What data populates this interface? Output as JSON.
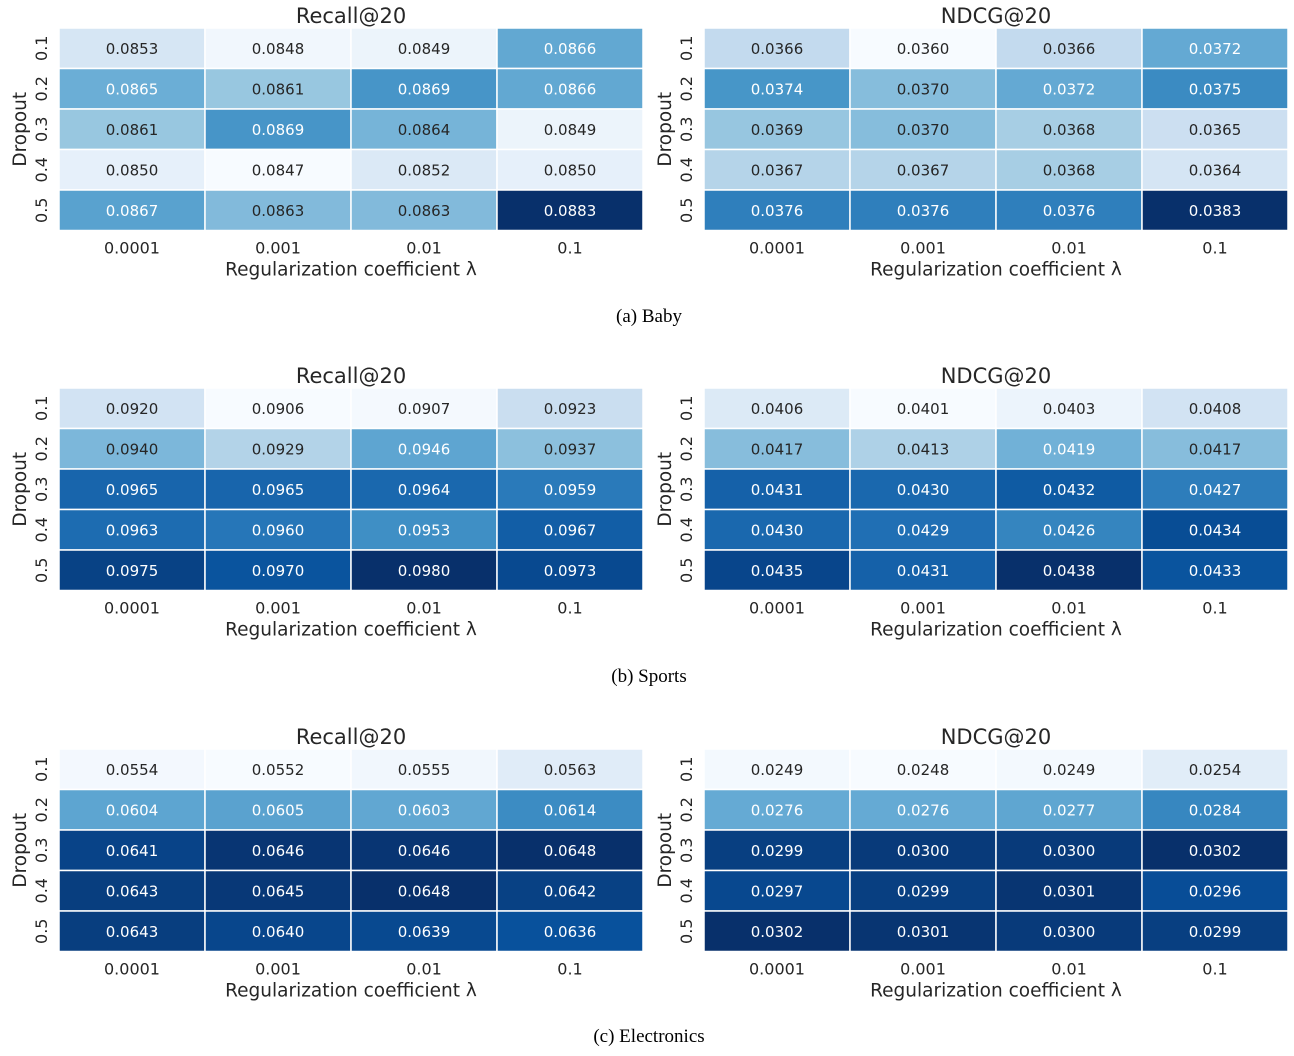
{
  "figure": {
    "panels": [
      {
        "caption": "(a)  Baby",
        "charts": [
          {
            "type": "heatmap",
            "title": "Recall@20",
            "xlabel": "Regularization coefficient λ",
            "ylabel": "Dropout",
            "x_ticks": [
              "0.0001",
              "0.001",
              "0.01",
              "0.1"
            ],
            "y_ticks": [
              "0.1",
              "0.2",
              "0.3",
              "0.4",
              "0.5"
            ],
            "values": [
              [
                "0.0853",
                "0.0848",
                "0.0849",
                "0.0866"
              ],
              [
                "0.0865",
                "0.0861",
                "0.0869",
                "0.0866"
              ],
              [
                "0.0861",
                "0.0869",
                "0.0864",
                "0.0849"
              ],
              [
                "0.0850",
                "0.0847",
                "0.0852",
                "0.0850"
              ],
              [
                "0.0867",
                "0.0863",
                "0.0863",
                "0.0883"
              ]
            ],
            "colormap": "Blues"
          },
          {
            "type": "heatmap",
            "title": "NDCG@20",
            "xlabel": "Regularization coefficient λ",
            "ylabel": "Dropout",
            "x_ticks": [
              "0.0001",
              "0.001",
              "0.01",
              "0.1"
            ],
            "y_ticks": [
              "0.1",
              "0.2",
              "0.3",
              "0.4",
              "0.5"
            ],
            "values": [
              [
                "0.0366",
                "0.0360",
                "0.0366",
                "0.0372"
              ],
              [
                "0.0374",
                "0.0370",
                "0.0372",
                "0.0375"
              ],
              [
                "0.0369",
                "0.0370",
                "0.0368",
                "0.0365"
              ],
              [
                "0.0367",
                "0.0367",
                "0.0368",
                "0.0364"
              ],
              [
                "0.0376",
                "0.0376",
                "0.0376",
                "0.0383"
              ]
            ],
            "colormap": "Blues"
          }
        ]
      },
      {
        "caption": "(b)  Sports",
        "charts": [
          {
            "type": "heatmap",
            "title": "Recall@20",
            "xlabel": "Regularization coefficient λ",
            "ylabel": "Dropout",
            "x_ticks": [
              "0.0001",
              "0.001",
              "0.01",
              "0.1"
            ],
            "y_ticks": [
              "0.1",
              "0.2",
              "0.3",
              "0.4",
              "0.5"
            ],
            "values": [
              [
                "0.0920",
                "0.0906",
                "0.0907",
                "0.0923"
              ],
              [
                "0.0940",
                "0.0929",
                "0.0946",
                "0.0937"
              ],
              [
                "0.0965",
                "0.0965",
                "0.0964",
                "0.0959"
              ],
              [
                "0.0963",
                "0.0960",
                "0.0953",
                "0.0967"
              ],
              [
                "0.0975",
                "0.0970",
                "0.0980",
                "0.0973"
              ]
            ],
            "colormap": "Blues"
          },
          {
            "type": "heatmap",
            "title": "NDCG@20",
            "xlabel": "Regularization coefficient λ",
            "ylabel": "Dropout",
            "x_ticks": [
              "0.0001",
              "0.001",
              "0.01",
              "0.1"
            ],
            "y_ticks": [
              "0.1",
              "0.2",
              "0.3",
              "0.4",
              "0.5"
            ],
            "values": [
              [
                "0.0406",
                "0.0401",
                "0.0403",
                "0.0408"
              ],
              [
                "0.0417",
                "0.0413",
                "0.0419",
                "0.0417"
              ],
              [
                "0.0431",
                "0.0430",
                "0.0432",
                "0.0427"
              ],
              [
                "0.0430",
                "0.0429",
                "0.0426",
                "0.0434"
              ],
              [
                "0.0435",
                "0.0431",
                "0.0438",
                "0.0433"
              ]
            ],
            "colormap": "Blues"
          }
        ]
      },
      {
        "caption": "(c)  Electronics",
        "charts": [
          {
            "type": "heatmap",
            "title": "Recall@20",
            "xlabel": "Regularization coefficient λ",
            "ylabel": "Dropout",
            "x_ticks": [
              "0.0001",
              "0.001",
              "0.01",
              "0.1"
            ],
            "y_ticks": [
              "0.1",
              "0.2",
              "0.3",
              "0.4",
              "0.5"
            ],
            "values": [
              [
                "0.0554",
                "0.0552",
                "0.0555",
                "0.0563"
              ],
              [
                "0.0604",
                "0.0605",
                "0.0603",
                "0.0614"
              ],
              [
                "0.0641",
                "0.0646",
                "0.0646",
                "0.0648"
              ],
              [
                "0.0643",
                "0.0645",
                "0.0648",
                "0.0642"
              ],
              [
                "0.0643",
                "0.0640",
                "0.0639",
                "0.0636"
              ]
            ],
            "colormap": "Blues"
          },
          {
            "type": "heatmap",
            "title": "NDCG@20",
            "xlabel": "Regularization coefficient λ",
            "ylabel": "Dropout",
            "x_ticks": [
              "0.0001",
              "0.001",
              "0.01",
              "0.1"
            ],
            "y_ticks": [
              "0.1",
              "0.2",
              "0.3",
              "0.4",
              "0.5"
            ],
            "values": [
              [
                "0.0249",
                "0.0248",
                "0.0249",
                "0.0254"
              ],
              [
                "0.0276",
                "0.0276",
                "0.0277",
                "0.0284"
              ],
              [
                "0.0299",
                "0.0300",
                "0.0300",
                "0.0302"
              ],
              [
                "0.0297",
                "0.0299",
                "0.0301",
                "0.0296"
              ],
              [
                "0.0302",
                "0.0301",
                "0.0300",
                "0.0299"
              ]
            ],
            "colormap": "Blues"
          }
        ]
      }
    ]
  }
}
